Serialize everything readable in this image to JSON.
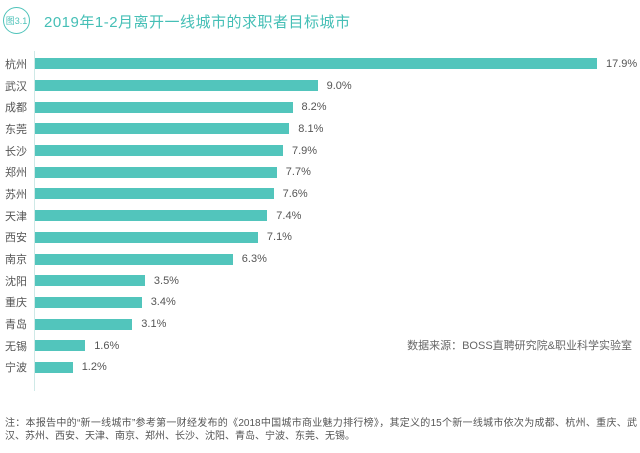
{
  "figure_badge": "图3.1",
  "title": "2019年1-2月离开一线城市的求职者目标城市",
  "data_source": "数据来源：BOSS直聘研究院&职业科学实验室",
  "footnote": "注：本报告中的“新一线城市”参考第一财经发布的《2018中国城市商业魅力排行榜》，其定义的15个新一线城市依次为成都、杭州、重庆、武汉、苏州、西安、天津、南京、郑州、长沙、沈阳、青岛、宁波、东莞、无锡。",
  "colors": {
    "accent": "#52c5bc",
    "title_text": "#45bfb6",
    "label_text": "#555555",
    "note_text": "#555555",
    "axis_line": "#cfe9e7"
  },
  "chart_data": {
    "type": "bar",
    "orientation": "horizontal",
    "title": "2019年1-2月离开一线城市的求职者目标城市",
    "categories": [
      "杭州",
      "武汉",
      "成都",
      "东莞",
      "长沙",
      "郑州",
      "苏州",
      "天津",
      "西安",
      "南京",
      "沈阳",
      "重庆",
      "青岛",
      "无锡",
      "宁波"
    ],
    "values": [
      17.9,
      9.0,
      8.2,
      8.1,
      7.9,
      7.7,
      7.6,
      7.4,
      7.1,
      6.3,
      3.5,
      3.4,
      3.1,
      1.6,
      1.2
    ],
    "value_labels": [
      "17.9%",
      "9.0%",
      "8.2%",
      "8.1%",
      "7.9%",
      "7.7%",
      "7.6%",
      "7.4%",
      "7.1%",
      "6.3%",
      "3.5%",
      "3.4%",
      "3.1%",
      "1.6%",
      "1.2%"
    ],
    "xlabel": "",
    "ylabel": "",
    "xlim": [
      0,
      18.5
    ],
    "grid": false,
    "legend": false,
    "bar_color": "#52c5bc",
    "value_suffix": "%"
  }
}
